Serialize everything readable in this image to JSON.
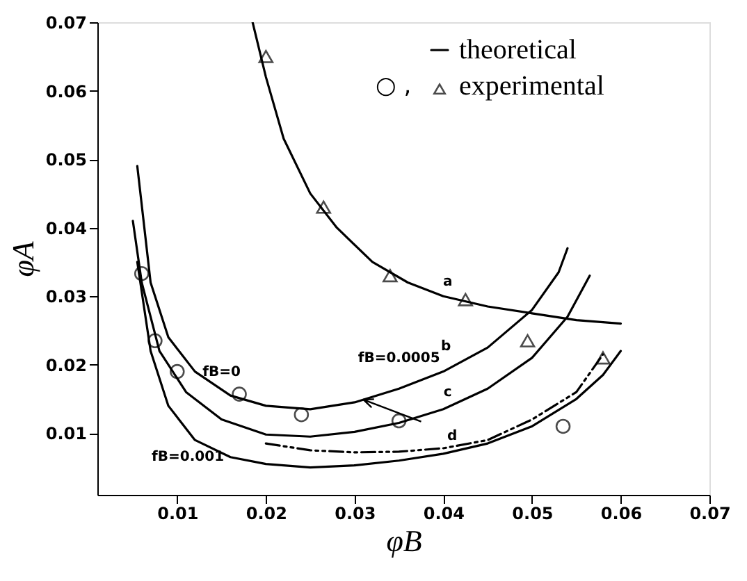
{
  "chart_data": {
    "type": "line",
    "xlabel": "φB",
    "ylabel": "φA",
    "xlim": [
      0.001,
      0.07
    ],
    "ylim": [
      0.001,
      0.07
    ],
    "xticks": [
      0.01,
      0.02,
      0.03,
      0.04,
      0.05,
      0.06,
      0.07
    ],
    "yticks": [
      0.01,
      0.02,
      0.03,
      0.04,
      0.05,
      0.06,
      0.07
    ],
    "grid": false,
    "legend": "top right",
    "series": [
      {
        "name": "theoretical",
        "color": "#000000",
        "line_style": "solid",
        "x": [
          0.0185,
          0.02,
          0.022,
          0.025,
          0.028,
          0.032,
          0.036,
          0.04,
          0.045,
          0.05,
          0.055,
          0.06
        ],
        "values": [
          0.07,
          0.062,
          0.053,
          0.045,
          0.04,
          0.035,
          0.032,
          0.03,
          0.0285,
          0.0275,
          0.0265,
          0.026
        ]
      },
      {
        "color": "#000000",
        "line_style": "solid",
        "x": [
          0.0055,
          0.007,
          0.009,
          0.012,
          0.016,
          0.02,
          0.025,
          0.03,
          0.035,
          0.04,
          0.045,
          0.05,
          0.053,
          0.054
        ],
        "values": [
          0.049,
          0.032,
          0.024,
          0.019,
          0.0155,
          0.014,
          0.0135,
          0.0145,
          0.0165,
          0.019,
          0.0225,
          0.028,
          0.0335,
          0.037
        ]
      },
      {
        "color": "#000000",
        "line_style": "solid",
        "x": [
          0.005,
          0.006,
          0.008,
          0.011,
          0.015,
          0.02,
          0.025,
          0.03,
          0.035,
          0.04,
          0.045,
          0.05,
          0.054,
          0.0565
        ],
        "values": [
          0.041,
          0.032,
          0.022,
          0.016,
          0.012,
          0.0098,
          0.0095,
          0.0102,
          0.0115,
          0.0135,
          0.0165,
          0.021,
          0.027,
          0.033
        ]
      },
      {
        "color": "#000000",
        "line_style": "solid",
        "x": [
          0.0055,
          0.007,
          0.009,
          0.012,
          0.016,
          0.02,
          0.025,
          0.03,
          0.035,
          0.04,
          0.045,
          0.05,
          0.055,
          0.058,
          0.06
        ],
        "values": [
          0.035,
          0.022,
          0.014,
          0.009,
          0.0065,
          0.0055,
          0.005,
          0.0053,
          0.006,
          0.007,
          0.0085,
          0.011,
          0.015,
          0.0185,
          0.022
        ]
      },
      {
        "color": "#000000",
        "line_style": "dashed",
        "x": [
          0.02,
          0.025,
          0.03,
          0.035,
          0.04,
          0.045,
          0.05,
          0.055,
          0.058
        ],
        "values": [
          0.0085,
          0.0075,
          0.0072,
          0.0073,
          0.0078,
          0.009,
          0.012,
          0.016,
          0.0215
        ]
      },
      {
        "type": "scatter",
        "marker": "circle",
        "color": "#000000",
        "x": [
          0.006,
          0.0075,
          0.01,
          0.017,
          0.024,
          0.035,
          0.0535
        ],
        "values": [
          0.0333,
          0.0235,
          0.019,
          0.0157,
          0.0127,
          0.0118,
          0.011
        ]
      },
      {
        "name": "experimental",
        "type": "scatter",
        "marker": "triangle",
        "color": "#000000",
        "x": [
          0.02,
          0.0265,
          0.034,
          0.0425,
          0.0495,
          0.058
        ],
        "values": [
          0.065,
          0.043,
          0.033,
          0.0295,
          0.0235,
          0.021
        ]
      }
    ],
    "annotations": [
      "a",
      "b",
      "c",
      "d",
      "fB=0",
      {
        "text": "fB=0.0005",
        "x": 0.031,
        "y": 0.0149
      },
      "fB=0.001",
      "○ ,"
    ]
  }
}
